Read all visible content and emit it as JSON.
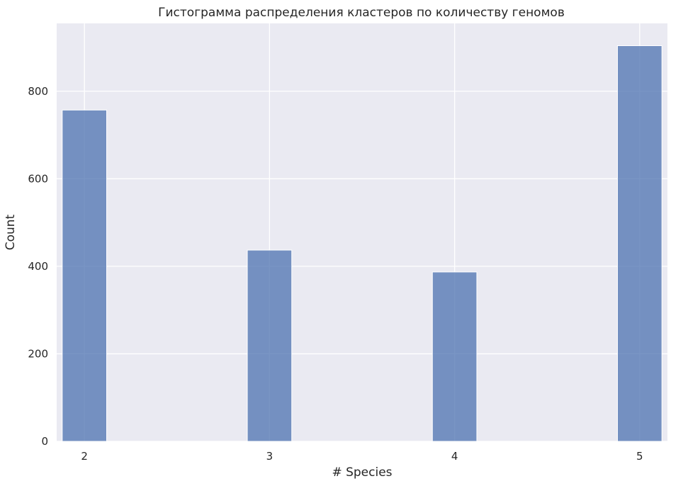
{
  "chart_data": {
    "type": "bar",
    "title": "Гистограмма распределения кластеров по количеству геномов",
    "xlabel": "# Species",
    "ylabel": "Count",
    "categories": [
      2,
      3,
      4,
      5
    ],
    "values": [
      757,
      437,
      387,
      904
    ],
    "x_ticks": [
      "2",
      "3",
      "4",
      "5"
    ],
    "y_ticks": [
      0,
      200,
      400,
      600,
      800
    ],
    "xlim": [
      1.85,
      5.15
    ],
    "ylim": [
      0,
      955
    ],
    "bar_width": 0.24,
    "grid": true,
    "legend": "none",
    "colors": {
      "bar": "#4c72b0",
      "background": "#eaeaf2",
      "grid": "#ffffff",
      "text": "#262626"
    }
  }
}
